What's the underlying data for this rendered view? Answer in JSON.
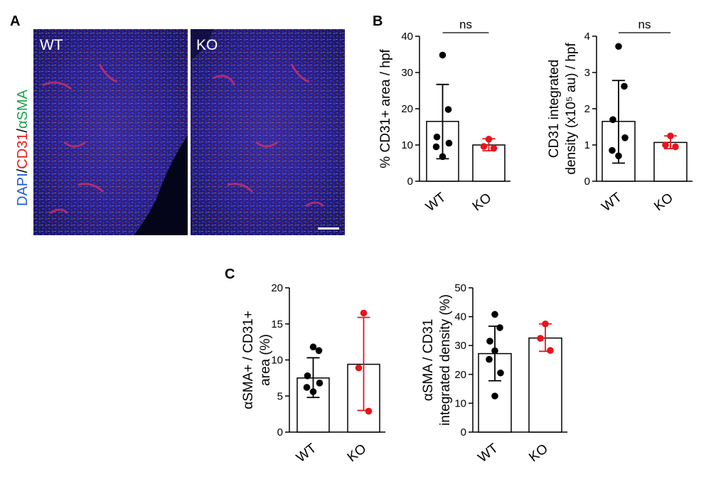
{
  "figure": {
    "panel_labels": [
      "A",
      "B",
      "C"
    ],
    "stain": [
      {
        "text": "DAPI",
        "color": "#1f5fd6"
      },
      {
        "text": "/",
        "color": "#000000"
      },
      {
        "text": "CD31",
        "color": "#e0201b"
      },
      {
        "text": "/",
        "color": "#000000"
      },
      {
        "text": "αSMA",
        "color": "#1aa34a"
      }
    ],
    "micrographs": [
      {
        "label": "WT"
      },
      {
        "label": "KO"
      }
    ],
    "scale_bar": true
  },
  "colors": {
    "wt": "#000000",
    "ko": "#e8141b"
  },
  "chart_data": [
    {
      "type": "bar",
      "panel": "B",
      "title": "",
      "categories": [
        "WT",
        "KO"
      ],
      "values": [
        16.5,
        10.0
      ],
      "error": [
        [
          6.2,
          26.7
        ],
        [
          8.4,
          11.7
        ]
      ],
      "points": [
        [
          34.8,
          19.8,
          12.2,
          10.5,
          9.5,
          6.8
        ],
        [
          11.6,
          9.6,
          9.1
        ]
      ],
      "ylabel": "% CD31+ area / hpf",
      "ylim": [
        0,
        40
      ],
      "yticks": [
        0,
        10,
        20,
        30,
        40
      ],
      "significance": "ns"
    },
    {
      "type": "bar",
      "panel": "B",
      "title": "",
      "categories": [
        "WT",
        "KO"
      ],
      "values": [
        1.65,
        1.07
      ],
      "error": [
        [
          0.5,
          2.78
        ],
        [
          0.9,
          1.25
        ]
      ],
      "points": [
        [
          3.72,
          2.62,
          1.7,
          1.2,
          0.85,
          0.7
        ],
        [
          1.25,
          1.0,
          0.95
        ]
      ],
      "ylabel_lines": [
        "CD31 integrated",
        "density (x10⁵ au) / hpf"
      ],
      "ylim": [
        0,
        4
      ],
      "yticks": [
        0,
        1,
        2,
        3,
        4
      ],
      "significance": "ns"
    },
    {
      "type": "bar",
      "panel": "C",
      "title": "",
      "categories": [
        "WT",
        "KO"
      ],
      "values": [
        7.5,
        9.4
      ],
      "error": [
        [
          4.8,
          10.3
        ],
        [
          3.0,
          15.9
        ]
      ],
      "points": [
        [
          11.8,
          11.3,
          7.8,
          6.8,
          6.2,
          5.6
        ],
        [
          16.5,
          8.9,
          2.9
        ]
      ],
      "ylabel_lines": [
        "αSMA+ / CD31+",
        "area (%)"
      ],
      "ylim": [
        0,
        20
      ],
      "yticks": [
        0,
        5,
        10,
        15,
        20
      ]
    },
    {
      "type": "bar",
      "panel": "C",
      "title": "",
      "categories": [
        "WT",
        "KO"
      ],
      "values": [
        27.2,
        32.6
      ],
      "error": [
        [
          17.8,
          36.7
        ],
        [
          28.0,
          37.5
        ]
      ],
      "points": [
        [
          40.8,
          36.2,
          31.5,
          28.2,
          25.2,
          20.5,
          12.5
        ],
        [
          37.5,
          32.5,
          28.3
        ]
      ],
      "ylabel_lines": [
        "αSMA / CD31",
        "integrated density (%)"
      ],
      "ylim": [
        0,
        50
      ],
      "yticks": [
        0,
        10,
        20,
        30,
        40,
        50
      ]
    }
  ]
}
